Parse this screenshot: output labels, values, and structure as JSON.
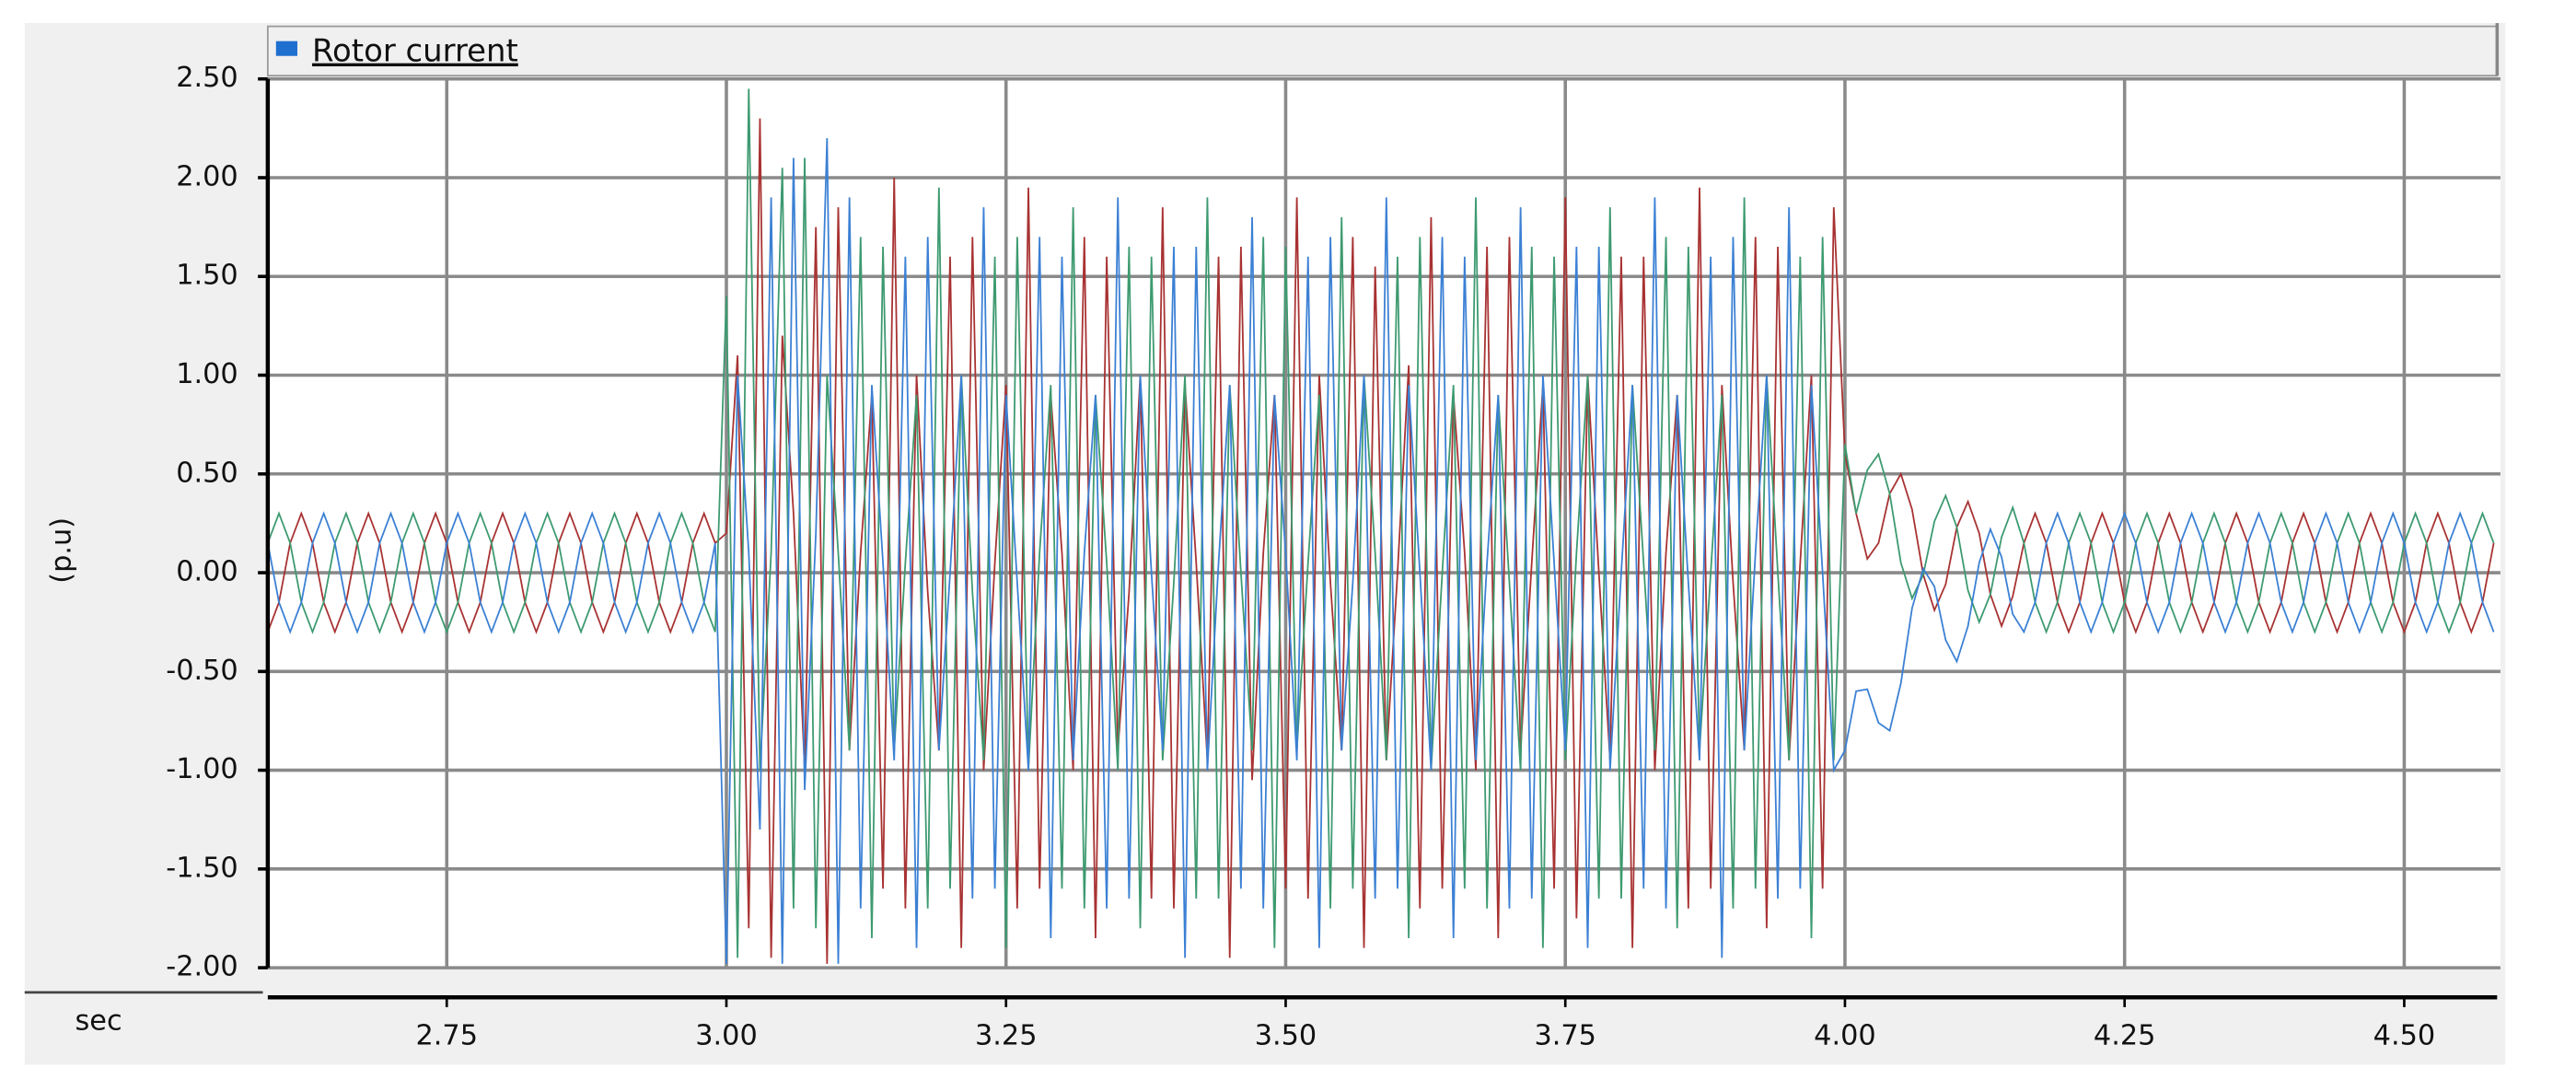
{
  "chart_data": {
    "type": "line",
    "legend": {
      "label": "Rotor current",
      "color": "#1f6fd0"
    },
    "y_label": "(p.u)",
    "x_label": "sec",
    "xlim": [
      2.59,
      4.586
    ],
    "ylim": [
      -2,
      2.5
    ],
    "xticks": [
      2.75,
      {
        "value": 3,
        "label": "3.00"
      },
      3.25,
      {
        "value": 3.5,
        "label": "3.50"
      },
      3.75,
      {
        "value": 4,
        "label": "4.00"
      },
      4.25,
      {
        "value": 4.5,
        "label": "4.50"
      }
    ],
    "yticks": [
      {
        "value": -2,
        "label": "-2.00"
      },
      {
        "value": -1.5,
        "label": "-1.50"
      },
      {
        "value": -1,
        "label": "-1.00"
      },
      {
        "value": -0.5,
        "label": "-0.50"
      },
      {
        "value": 0,
        "label": "0.00"
      },
      {
        "value": 0.5,
        "label": "0.50"
      },
      {
        "value": 1,
        "label": "1.00"
      },
      {
        "value": 1.5,
        "label": "1.50"
      },
      {
        "value": 2,
        "label": "2.00"
      },
      {
        "value": 2.5,
        "label": "2.50"
      }
    ],
    "grid": true,
    "x": [
      2.59,
      2.6,
      2.61,
      2.62,
      2.63,
      2.64,
      2.65,
      2.66,
      2.67,
      2.68,
      2.69,
      2.7,
      2.71,
      2.72,
      2.73,
      2.74,
      2.75,
      2.76,
      2.77,
      2.78,
      2.79,
      2.8,
      2.81,
      2.82,
      2.83,
      2.84,
      2.85,
      2.86,
      2.87,
      2.88,
      2.89,
      2.9,
      2.91,
      2.92,
      2.93,
      2.94,
      2.95,
      2.96,
      2.97,
      2.98,
      2.99,
      3,
      3.01,
      3.02,
      3.03,
      3.04,
      3.05,
      3.06,
      3.07,
      3.08,
      3.09,
      3.1,
      3.11,
      3.12,
      3.13,
      3.14,
      3.15,
      3.16,
      3.17,
      3.18,
      3.19,
      3.2,
      3.21,
      3.22,
      3.23,
      3.24,
      3.25,
      3.26,
      3.27,
      3.28,
      3.29,
      3.3,
      3.31,
      3.32,
      3.33,
      3.34,
      3.35,
      3.36,
      3.37,
      3.38,
      3.39,
      3.4,
      3.41,
      3.42,
      3.43,
      3.44,
      3.45,
      3.46,
      3.47,
      3.48,
      3.49,
      3.5,
      3.51,
      3.52,
      3.53,
      3.54,
      3.55,
      3.56,
      3.57,
      3.58,
      3.59,
      3.6,
      3.61,
      3.62,
      3.63,
      3.64,
      3.65,
      3.66,
      3.67,
      3.68,
      3.69,
      3.7,
      3.71,
      3.72,
      3.73,
      3.74,
      3.75,
      3.76,
      3.77,
      3.78,
      3.79,
      3.8,
      3.81,
      3.82,
      3.83,
      3.84,
      3.85,
      3.86,
      3.87,
      3.88,
      3.89,
      3.9,
      3.91,
      3.92,
      3.93,
      3.94,
      3.95,
      3.96,
      3.97,
      3.98,
      3.99,
      4,
      4.01,
      4.02,
      4.03,
      4.04,
      4.05,
      4.06,
      4.07,
      4.08,
      4.09,
      4.1,
      4.11,
      4.12,
      4.13,
      4.14,
      4.15,
      4.16,
      4.17,
      4.18,
      4.19,
      4.2,
      4.21,
      4.22,
      4.23,
      4.24,
      4.25,
      4.26,
      4.27,
      4.28,
      4.29,
      4.3,
      4.31,
      4.32,
      4.33,
      4.34,
      4.35,
      4.36,
      4.37,
      4.38,
      4.39,
      4.4,
      4.41,
      4.42,
      4.43,
      4.44,
      4.45,
      4.46,
      4.47,
      4.48,
      4.49,
      4.5,
      4.51,
      4.52,
      4.53,
      4.54,
      4.55,
      4.56,
      4.57,
      4.58
    ],
    "series": [
      {
        "color": "#a83232",
        "values": [
          -0.3,
          -0.15,
          0.15,
          0.3,
          0.15,
          -0.15,
          -0.3,
          -0.15,
          0.15,
          0.3,
          0.15,
          -0.15,
          -0.3,
          -0.15,
          0.15,
          0.3,
          0.15,
          -0.15,
          -0.3,
          -0.15,
          0.15,
          0.3,
          0.15,
          -0.15,
          -0.3,
          -0.15,
          0.15,
          0.3,
          0.15,
          -0.15,
          -0.3,
          -0.15,
          0.15,
          0.3,
          0.15,
          -0.15,
          -0.3,
          -0.15,
          0.15,
          0.3,
          0.15,
          0.2,
          1.1,
          -1.8,
          2.3,
          -1.95,
          1.2,
          0.3,
          -1.0,
          1.75,
          -1.98,
          1.85,
          -0.9,
          0.1,
          0.9,
          -1.6,
          2.0,
          -1.7,
          1.0,
          -0.1,
          -0.9,
          1.6,
          -1.9,
          1.7,
          -1.0,
          0.05,
          0.95,
          -1.7,
          1.95,
          -1.6,
          0.9,
          0.1,
          -1.0,
          1.7,
          -1.85,
          1.6,
          -0.9,
          -0.1,
          1.0,
          -1.65,
          1.85,
          -1.7,
          0.95,
          0.05,
          -0.95,
          1.6,
          -1.95,
          1.65,
          -1.05,
          0.1,
          0.9,
          -1.6,
          1.9,
          -1.65,
          1.0,
          -0.05,
          -0.9,
          1.7,
          -1.9,
          1.55,
          -0.95,
          0.0,
          1.05,
          -1.7,
          1.8,
          -1.6,
          0.9,
          0.1,
          -1.0,
          1.65,
          -1.85,
          1.7,
          -0.9,
          0.05,
          0.95,
          -1.6,
          1.9,
          -1.75,
          1.0,
          0.0,
          -0.95,
          1.6,
          -1.9,
          1.6,
          -1.0,
          0.1,
          0.9,
          -1.7,
          1.95,
          -1.6,
          0.95,
          -0.05,
          -0.9,
          1.7,
          -1.8,
          1.65,
          -0.95,
          0.05,
          1.0,
          -1.6,
          1.85,
          0.6,
          0.3,
          0.07,
          0.15,
          0.4,
          0.5,
          0.32,
          -0.01,
          -0.19,
          -0.06,
          0.23,
          0.36,
          0.2,
          -0.11,
          -0.27,
          -0.12,
          0.15,
          0.3,
          0.15,
          -0.15,
          -0.3,
          -0.15,
          0.15,
          0.3,
          0.15,
          -0.15,
          -0.3,
          -0.15,
          0.15,
          0.3,
          0.15,
          -0.15,
          -0.3,
          -0.15,
          0.15,
          0.3,
          0.15,
          -0.15,
          -0.3,
          -0.15,
          0.15,
          0.3,
          0.15,
          -0.15,
          -0.3,
          -0.15,
          0.15,
          0.3,
          0.15,
          -0.15,
          -0.3,
          -0.15,
          0.15,
          0.3,
          0.15,
          -0.15,
          -0.3,
          -0.15,
          0.15
        ]
      },
      {
        "color": "#3d9a70",
        "values": [
          0.15,
          0.3,
          0.15,
          -0.15,
          -0.3,
          -0.15,
          0.15,
          0.3,
          0.15,
          -0.15,
          -0.3,
          -0.15,
          0.15,
          0.3,
          0.15,
          -0.15,
          -0.3,
          -0.15,
          0.15,
          0.3,
          0.15,
          -0.15,
          -0.3,
          -0.15,
          0.15,
          0.3,
          0.15,
          -0.15,
          -0.3,
          -0.15,
          0.15,
          0.3,
          0.15,
          -0.15,
          -0.3,
          -0.15,
          0.15,
          0.3,
          0.15,
          -0.15,
          -0.3,
          1.4,
          -1.95,
          2.45,
          -1.0,
          0.1,
          2.05,
          -1.7,
          2.1,
          -1.8,
          1.0,
          0.1,
          -0.9,
          1.7,
          -1.85,
          1.65,
          -0.9,
          0.05,
          0.9,
          -1.7,
          1.95,
          -1.6,
          1.0,
          -0.1,
          -0.95,
          1.6,
          -1.9,
          1.7,
          -1.0,
          0.1,
          0.95,
          -1.6,
          1.85,
          -1.7,
          0.9,
          0.05,
          -1.0,
          1.65,
          -1.8,
          1.6,
          -0.95,
          -0.05,
          1.0,
          -1.65,
          1.9,
          -1.65,
          0.95,
          0.0,
          -0.9,
          1.7,
          -1.9,
          1.65,
          -0.9,
          0.05,
          0.9,
          -1.7,
          1.8,
          -1.6,
          1.0,
          0.1,
          -0.95,
          1.6,
          -1.85,
          1.7,
          -1.0,
          0.0,
          0.95,
          -1.6,
          1.9,
          -1.7,
          0.9,
          -0.05,
          -1.0,
          1.65,
          -1.9,
          1.6,
          -0.95,
          0.1,
          1.0,
          -1.65,
          1.85,
          -1.65,
          0.95,
          0.05,
          -0.9,
          1.7,
          -1.8,
          1.65,
          -0.9,
          0.0,
          0.9,
          -1.7,
          1.9,
          -1.6,
          1.0,
          0.0,
          -0.95,
          1.6,
          -1.85,
          1.7,
          -0.95,
          0.65,
          0.3,
          0.52,
          0.6,
          0.4,
          0.05,
          -0.13,
          -0.01,
          0.26,
          0.39,
          0.23,
          -0.09,
          -0.25,
          -0.11,
          0.18,
          0.33,
          0.15,
          -0.15,
          -0.3,
          -0.15,
          0.15,
          0.3,
          0.15,
          -0.15,
          -0.3,
          -0.15,
          0.15,
          0.3,
          0.15,
          -0.15,
          -0.3,
          -0.15,
          0.15,
          0.3,
          0.15,
          -0.15,
          -0.3,
          -0.15,
          0.15,
          0.3,
          0.15,
          -0.15,
          -0.3,
          -0.15,
          0.15,
          0.3,
          0.15,
          -0.15,
          -0.3,
          -0.15,
          0.15,
          0.3,
          0.15,
          -0.15,
          -0.3,
          -0.15,
          0.15,
          0.3,
          0.15
        ]
      },
      {
        "color": "#3b80d4",
        "values": [
          0.15,
          -0.15,
          -0.3,
          -0.15,
          0.15,
          0.3,
          0.15,
          -0.15,
          -0.3,
          -0.15,
          0.15,
          0.3,
          0.15,
          -0.15,
          -0.3,
          -0.15,
          0.15,
          0.3,
          0.15,
          -0.15,
          -0.3,
          -0.15,
          0.15,
          0.3,
          0.15,
          -0.15,
          -0.3,
          -0.15,
          0.15,
          0.3,
          0.15,
          -0.15,
          -0.3,
          -0.15,
          0.15,
          0.3,
          0.15,
          -0.15,
          -0.3,
          -0.15,
          0.15,
          -1.98,
          1.0,
          0.1,
          -1.3,
          1.9,
          -1.98,
          2.1,
          -1.1,
          0.2,
          2.2,
          -1.98,
          1.9,
          -1.7,
          0.95,
          0.05,
          -0.95,
          1.6,
          -1.9,
          1.7,
          -0.9,
          0.0,
          1.0,
          -1.65,
          1.85,
          -1.6,
          0.9,
          -0.05,
          -1.0,
          1.7,
          -1.85,
          1.6,
          -0.95,
          0.1,
          0.9,
          -1.7,
          1.9,
          -1.65,
          1.0,
          0.0,
          -0.9,
          1.65,
          -1.95,
          1.65,
          -1.0,
          0.05,
          0.95,
          -1.6,
          1.8,
          -1.7,
          0.9,
          0.1,
          -0.95,
          1.6,
          -1.9,
          1.7,
          -0.9,
          -0.05,
          1.0,
          -1.65,
          1.9,
          -1.6,
          0.95,
          0.0,
          -1.0,
          1.7,
          -1.85,
          1.6,
          -0.95,
          0.05,
          0.9,
          -1.7,
          1.85,
          -1.65,
          1.0,
          0.05,
          -0.9,
          1.65,
          -1.9,
          1.65,
          -1.0,
          0.0,
          0.95,
          -1.6,
          1.9,
          -1.7,
          0.9,
          -0.05,
          -0.95,
          1.6,
          -1.95,
          1.7,
          -0.9,
          0.1,
          1.0,
          -1.65,
          1.85,
          -1.6,
          0.95,
          0.0,
          -1.0,
          -0.9,
          -0.6,
          -0.59,
          -0.76,
          -0.8,
          -0.56,
          -0.18,
          0.02,
          -0.07,
          -0.34,
          -0.45,
          -0.27,
          0.05,
          0.22,
          0.08,
          -0.21,
          -0.3,
          -0.15,
          0.15,
          0.3,
          0.15,
          -0.15,
          -0.3,
          -0.15,
          0.15,
          0.3,
          0.15,
          -0.15,
          -0.3,
          -0.15,
          0.15,
          0.3,
          0.15,
          -0.15,
          -0.3,
          -0.15,
          0.15,
          0.3,
          0.15,
          -0.15,
          -0.3,
          -0.15,
          0.15,
          0.3,
          0.15,
          -0.15,
          -0.3,
          -0.15,
          0.15,
          0.3,
          0.15,
          -0.15,
          -0.3,
          -0.15,
          0.15,
          0.3,
          0.15,
          -0.15,
          -0.3
        ]
      }
    ]
  }
}
